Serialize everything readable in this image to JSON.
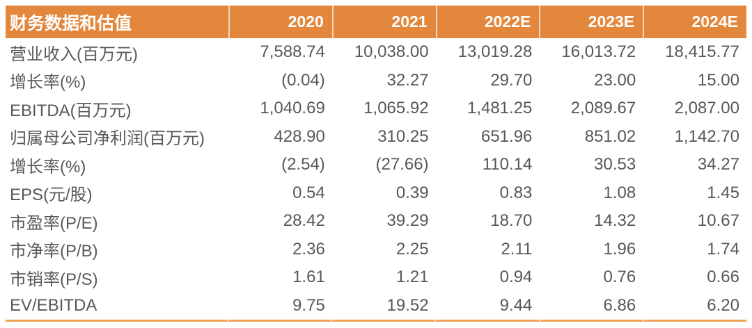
{
  "table": {
    "title": "财务数据和估值",
    "columns": [
      "2020",
      "2021",
      "2022E",
      "2023E",
      "2024E"
    ],
    "rows": [
      {
        "label": "营业收入(百万元)",
        "values": [
          "7,588.74",
          "10,038.00",
          "13,019.28",
          "16,013.72",
          "18,415.77"
        ]
      },
      {
        "label": "增长率(%)",
        "values": [
          "(0.04)",
          "32.27",
          "29.70",
          "23.00",
          "15.00"
        ]
      },
      {
        "label": "EBITDA(百万元)",
        "values": [
          "1,040.69",
          "1,065.92",
          "1,481.25",
          "2,089.67",
          "2,087.00"
        ]
      },
      {
        "label": "归属母公司净利润(百万元)",
        "values": [
          "428.90",
          "310.25",
          "651.96",
          "851.02",
          "1,142.70"
        ]
      },
      {
        "label": "增长率(%)",
        "values": [
          "(2.54)",
          "(27.66)",
          "110.14",
          "30.53",
          "34.27"
        ]
      },
      {
        "label": "EPS(元/股)",
        "values": [
          "0.54",
          "0.39",
          "0.83",
          "1.08",
          "1.45"
        ]
      },
      {
        "label": "市盈率(P/E)",
        "values": [
          "28.42",
          "39.29",
          "18.70",
          "14.32",
          "10.67"
        ]
      },
      {
        "label": "市净率(P/B)",
        "values": [
          "2.36",
          "2.25",
          "2.11",
          "1.96",
          "1.74"
        ]
      },
      {
        "label": "市销率(P/S)",
        "values": [
          "1.61",
          "1.21",
          "0.94",
          "0.76",
          "0.66"
        ]
      },
      {
        "label": "EV/EBITDA",
        "values": [
          "9.75",
          "19.52",
          "9.44",
          "6.86",
          "6.20"
        ]
      }
    ],
    "colors": {
      "header_bg": "#E2873C",
      "header_text": "#FFFFFF",
      "header_divider": "rgba(255,255,255,0.65)",
      "body_text": "#58585A",
      "bottom_rule": "#EDA55C"
    }
  }
}
